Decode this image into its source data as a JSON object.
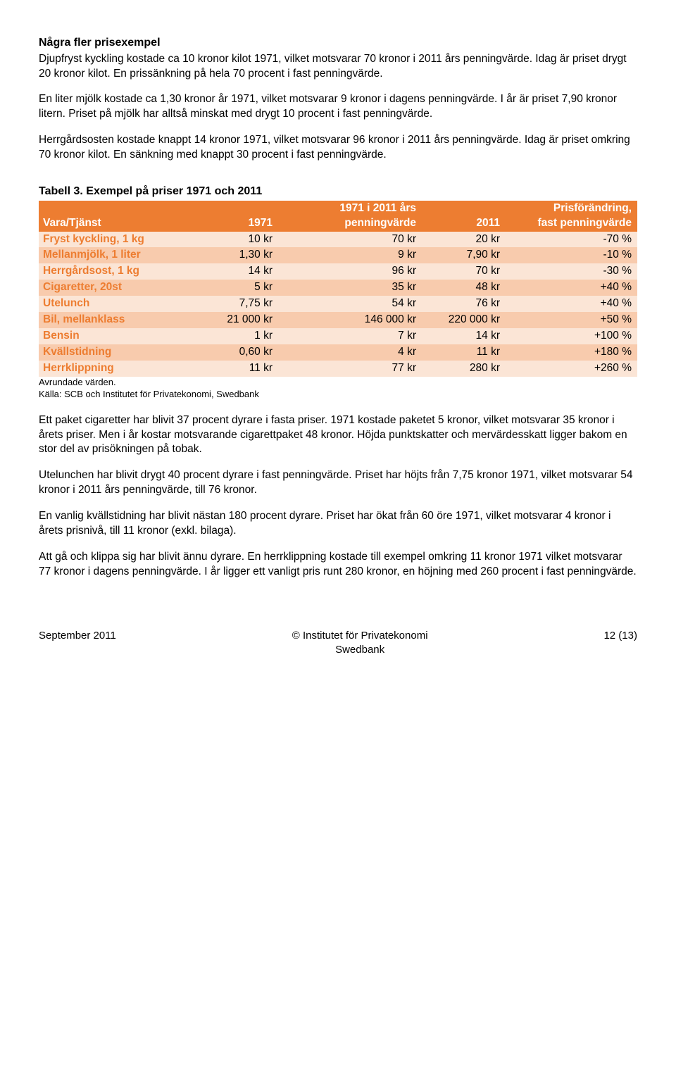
{
  "section": {
    "title": "Några fler prisexempel",
    "p1": "Djupfryst kyckling kostade ca 10 kronor kilot 1971, vilket motsvarar 70 kronor i 2011 års penningvärde. Idag är priset drygt 20 kronor kilot. En prissänkning på hela 70 procent i fast penningvärde.",
    "p2": "En liter mjölk kostade ca 1,30 kronor år 1971, vilket motsvarar 9 kronor i dagens penningvärde. I år är priset 7,90 kronor litern. Priset på mjölk har alltså minskat med drygt 10 procent i fast penningvärde.",
    "p3": "Herrgårdsosten kostade knappt 14 kronor 1971, vilket motsvarar 96 kronor i 2011 års penningvärde. Idag är priset omkring 70 kronor kilot. En sänkning med knappt 30 procent i fast penningvärde."
  },
  "table": {
    "title": "Tabell 3. Exempel på priser 1971 och 2011",
    "header_bg": "#ed7d31",
    "header_color": "#ffffff",
    "row_even_bg": "#fbe5d6",
    "row_odd_bg": "#f8cbad",
    "row_label_color": "#ed7d31",
    "columns": [
      "Vara/Tjänst",
      "1971",
      "1971 i 2011 års penningvärde",
      "2011",
      "Prisförändring, fast penningvärde"
    ],
    "col_widths": [
      "26%",
      "14%",
      "24%",
      "14%",
      "22%"
    ],
    "rows": [
      [
        "Fryst kyckling, 1 kg",
        "10 kr",
        "70 kr",
        "20 kr",
        "-70 %"
      ],
      [
        "Mellanmjölk, 1 liter",
        "1,30 kr",
        "9 kr",
        "7,90 kr",
        "-10 %"
      ],
      [
        "Herrgårdsost, 1 kg",
        "14 kr",
        "96 kr",
        "70 kr",
        "-30 %"
      ],
      [
        "Cigaretter, 20st",
        "5 kr",
        "35 kr",
        "48 kr",
        "+40 %"
      ],
      [
        "Utelunch",
        "7,75 kr",
        "54 kr",
        "76 kr",
        "+40 %"
      ],
      [
        "Bil, mellanklass",
        "21 000 kr",
        "146 000 kr",
        "220 000 kr",
        "+50 %"
      ],
      [
        "Bensin",
        "1 kr",
        "7 kr",
        "14 kr",
        "+100 %"
      ],
      [
        "Kvällstidning",
        "0,60 kr",
        "4 kr",
        "11 kr",
        "+180 %"
      ],
      [
        "Herrklippning",
        "11 kr",
        "77 kr",
        "280 kr",
        "+260 %"
      ]
    ],
    "note1": "Avrundade värden.",
    "note2": "Källa: SCB och Institutet för Privatekonomi, Swedbank"
  },
  "after": {
    "p1": "Ett paket cigaretter har blivit 37 procent dyrare i fasta priser. 1971 kostade paketet 5 kronor, vilket motsvarar 35 kronor i årets priser. Men i år kostar motsvarande cigarettpaket 48 kronor. Höjda punktskatter och mervärdesskatt ligger bakom en stor del av prisökningen på tobak.",
    "p2": "Utelunchen har blivit drygt 40 procent dyrare i fast penningvärde. Priset har höjts från 7,75 kronor 1971, vilket motsvarar 54 kronor i 2011 års penningvärde, till 76 kronor.",
    "p3": "En vanlig kvällstidning har blivit nästan 180 procent dyrare. Priset har ökat från 60 öre 1971, vilket motsvarar 4 kronor i årets prisnivå, till 11 kronor (exkl. bilaga).",
    "p4": "Att gå och klippa sig har blivit ännu dyrare. En herrklippning kostade till exempel omkring 11 kronor 1971 vilket motsvarar 77 kronor i dagens penningvärde. I år ligger ett vanligt pris runt 280 kronor, en höjning med 260 procent i fast penningvärde."
  },
  "footer": {
    "left": "September 2011",
    "center1": "© Institutet för Privatekonomi",
    "center2": "Swedbank",
    "right": "12 (13)"
  }
}
